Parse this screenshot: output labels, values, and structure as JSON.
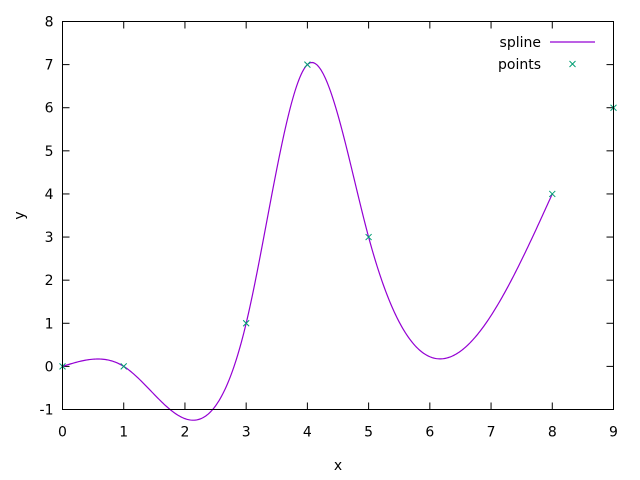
{
  "chart_data": {
    "type": "line",
    "title": "",
    "xlabel": "x",
    "ylabel": "y",
    "xlim": [
      0,
      9
    ],
    "ylim": [
      -1,
      8
    ],
    "xticks": [
      0,
      1,
      2,
      3,
      4,
      5,
      6,
      7,
      8,
      9
    ],
    "yticks": [
      -1,
      0,
      1,
      2,
      3,
      4,
      5,
      6,
      7,
      8
    ],
    "grid": false,
    "legend_position": "top-right",
    "series": [
      {
        "name": "spline",
        "kind": "line",
        "color": "#9400d3",
        "x": [
          0,
          1,
          3,
          4,
          5,
          8
        ],
        "y": [
          0,
          0,
          1,
          7,
          3,
          4
        ]
      },
      {
        "name": "points",
        "kind": "scatter",
        "marker": "x",
        "color": "#009e73",
        "x": [
          0,
          1,
          3,
          4,
          5,
          8,
          9
        ],
        "y": [
          0,
          0,
          1,
          7,
          3,
          4,
          6
        ]
      }
    ]
  }
}
